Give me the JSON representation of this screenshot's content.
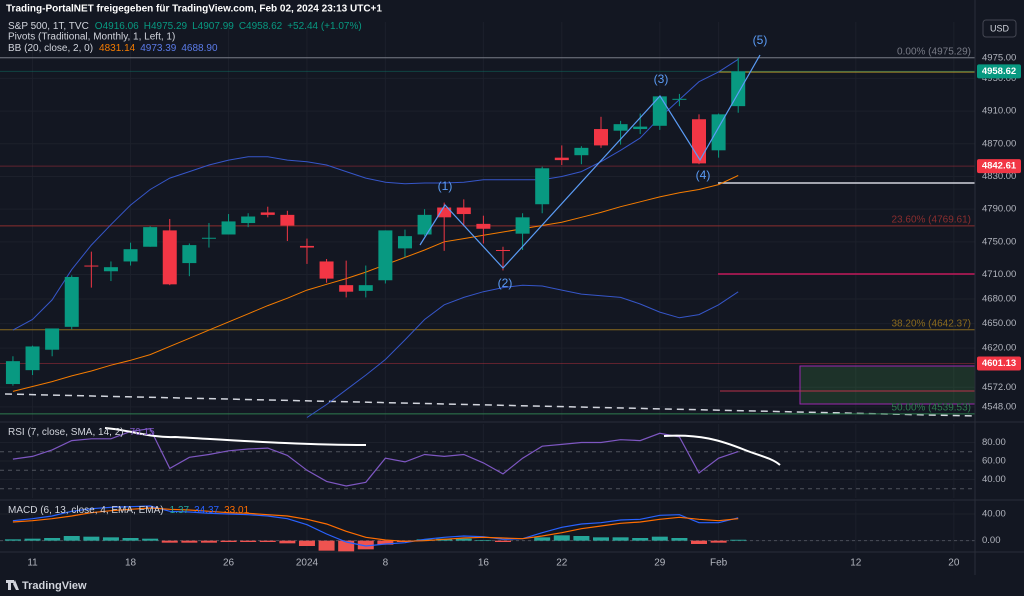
{
  "header": {
    "attribution": "Trading-PortalNET freigegeben für TradingView.com, Feb 02, 2024 23:13 UTC+1",
    "currency": "USD",
    "logo": "TradingView"
  },
  "chart_data": [
    {
      "type": "candlestick",
      "title": "S&P 500, 1T, TVC",
      "ohlc_labels": [
        "O4916.06",
        "H4975.29",
        "L4907.99",
        "C4958.62",
        "+52.44 (+1.07%)"
      ],
      "pivots_title": "Pivots (Traditional, Monthly, 1, Left, 1)",
      "xlim": [
        -0.66,
        49.08
      ],
      "xticks": [
        {
          "value": 1,
          "label": "11"
        },
        {
          "value": 6,
          "label": "18"
        },
        {
          "value": 11,
          "label": "26"
        },
        {
          "value": 15,
          "label": "2024"
        },
        {
          "value": 19,
          "label": "8"
        },
        {
          "value": 24,
          "label": "16"
        },
        {
          "value": 28,
          "label": "22"
        },
        {
          "value": 33,
          "label": "29"
        },
        {
          "value": 36,
          "label": "Feb"
        },
        {
          "value": 43,
          "label": "12"
        },
        {
          "value": 48,
          "label": "20"
        }
      ],
      "ylim": [
        4532,
        5019
      ],
      "yticks": [
        {
          "value": 4975,
          "label": "4975.00"
        },
        {
          "value": 4950,
          "label": "4950.00"
        },
        {
          "value": 4910,
          "label": "4910.00"
        },
        {
          "value": 4870,
          "label": "4870.00"
        },
        {
          "value": 4830,
          "label": "4830.00"
        },
        {
          "value": 4790,
          "label": "4790.00"
        },
        {
          "value": 4750,
          "label": "4750.00"
        },
        {
          "value": 4710,
          "label": "4710.00"
        },
        {
          "value": 4680,
          "label": "4680.00"
        },
        {
          "value": 4650,
          "label": "4650.00"
        },
        {
          "value": 4620,
          "label": "4620.00"
        },
        {
          "value": 4572,
          "label": "4572.00"
        },
        {
          "value": 4548,
          "label": "4548.00"
        }
      ],
      "grid": true,
      "up_color": "#089981",
      "down_color": "#f23645",
      "open": [
        4576,
        4593,
        4618,
        4646,
        4721,
        4714,
        4726,
        4744,
        4764,
        4724,
        4754,
        4759,
        4773,
        4786,
        4783,
        4745,
        4726,
        4697,
        4690,
        4703,
        4742,
        4759,
        4792,
        4792,
        4772,
        4740,
        4760,
        4796,
        4853,
        4856,
        4888,
        4886,
        4888,
        4892,
        4925,
        4900,
        4862,
        4916.06
      ],
      "high": [
        4610,
        4623,
        4644,
        4709,
        4738,
        4726,
        4749,
        4769,
        4778,
        4748,
        4773,
        4784,
        4785,
        4793,
        4788,
        4754,
        4729,
        4727,
        4721,
        4764,
        4765,
        4790,
        4798,
        4802,
        4782,
        4744,
        4785,
        4842,
        4868,
        4867,
        4903,
        4898,
        4907,
        4929,
        4931,
        4906,
        4907,
        4975.29
      ],
      "low": [
        4574,
        4587,
        4610,
        4643,
        4694,
        4702,
        4721,
        4744,
        4697,
        4708,
        4743,
        4759,
        4768,
        4780,
        4751,
        4723,
        4700,
        4682,
        4682,
        4699,
        4731,
        4757,
        4739,
        4769,
        4748,
        4715,
        4740,
        4785,
        4844,
        4845,
        4865,
        4869,
        4882,
        4887,
        4916,
        4845,
        4853,
        4907.99
      ],
      "close": [
        4604,
        4622,
        4644,
        4707,
        4720,
        4719,
        4741,
        4768,
        4698,
        4746,
        4755,
        4775,
        4781,
        4783,
        4770,
        4743,
        4705,
        4689,
        4697,
        4764,
        4757,
        4783,
        4780,
        4784,
        4766,
        4739,
        4780,
        4840,
        4850,
        4865,
        4868,
        4894,
        4891,
        4928,
        4925,
        4846,
        4906,
        4958.62
      ],
      "bb": {
        "title": "BB (20, close, 2, 0)",
        "legend_values": [
          "4831.14",
          "4973.39",
          "4688.90"
        ],
        "bands": [
          {
            "color": "#f57c00",
            "values": [
              4567,
              4573,
              4579,
              4586,
              4592,
              4599,
              4605,
              4612,
              4622,
              4632,
              4642,
              4652,
              4662,
              4672,
              4681,
              4691,
              4698,
              4705,
              4713,
              4722,
              4731,
              4740,
              4750,
              4754,
              4758,
              4762,
              4766,
              4770,
              4774,
              4780,
              4786,
              4793,
              4799,
              4805,
              4810,
              4814,
              4820,
              4831.14
            ]
          },
          {
            "color": "#3656c9",
            "values": [
              4642,
              4655,
              4679,
              4716,
              4746,
              4771,
              4795,
              4814,
              4828,
              4836,
              4844,
              4850,
              4854,
              4854,
              4850,
              4848,
              4844,
              4836,
              4828,
              4823,
              4821,
              4822,
              4822,
              4823,
              4826,
              4826,
              4826,
              4826,
              4830,
              4836,
              4848,
              4862,
              4877,
              4902,
              4924,
              4946,
              4958,
              4973.39
            ]
          },
          {
            "color": "#3656c9",
            "values": [
              null,
              null,
              null,
              null,
              null,
              null,
              null,
              null,
              null,
              null,
              null,
              null,
              null,
              null,
              null,
              4535,
              4551,
              4569,
              4587,
              4606,
              4630,
              4655,
              4673,
              4682,
              4689,
              4694,
              4697,
              4696,
              4691,
              4686,
              4684,
              4682,
              4674,
              4664,
              4657,
              4661,
              4673,
              4688.9
            ]
          }
        ]
      },
      "fib": {
        "prices": [
          4975.29,
          4769.61,
          4642.37,
          4539.53
        ],
        "labels": [
          "0.00% (4975.29)",
          "23.60% (4769.61)",
          "38.20% (4642.37)",
          "50.00% (4539.53)"
        ],
        "colors": [
          "#787b86",
          "#8b2e2e",
          "#8a6a1e",
          "#2e7d4f"
        ]
      },
      "price_labels": {
        "values": [
          4958.62,
          4842.61,
          4601.13
        ],
        "colors": [
          "#089981",
          "#f23645",
          "#f23645"
        ]
      },
      "annotations": [
        "(1)",
        "(2)",
        "(3)",
        "(4)",
        "(5)"
      ]
    },
    {
      "type": "line",
      "title": "RSI (7, close, SMA, 14, 2)",
      "ylim": [
        20,
        100
      ],
      "yticks": [
        {
          "value": 80,
          "label": "80.00"
        },
        {
          "value": 60,
          "label": "60.00"
        },
        {
          "value": 40,
          "label": "40.00"
        }
      ],
      "levels": [
        70,
        50,
        30
      ],
      "series": [
        {
          "color": "#7e57c2",
          "values": [
            62,
            65,
            72,
            82,
            84,
            84,
            92,
            95,
            52,
            64,
            67,
            71,
            73,
            74,
            66,
            50,
            38,
            33,
            37,
            63,
            59,
            67,
            65,
            67,
            58,
            46,
            63,
            76,
            78,
            80,
            80,
            83,
            82,
            90,
            86,
            47,
            63,
            70.15
          ]
        }
      ]
    },
    {
      "type": "macd",
      "title": "MACD (6, 13, close, 4, EMA, EMA)",
      "ylim": [
        -14,
        58
      ],
      "yticks": [
        {
          "value": 40,
          "label": "40.00"
        },
        {
          "value": 0,
          "label": "0.00"
        }
      ],
      "histogram": {
        "colors": [
          "#26a69a",
          "#ef5350"
        ],
        "values": [
          2,
          3,
          4,
          7,
          6,
          5,
          4,
          3,
          -3,
          -3,
          -3,
          -2,
          -2,
          -2,
          -4,
          -8,
          -15,
          -16,
          -13,
          -6,
          -2,
          2,
          3,
          3,
          1,
          -2,
          0,
          5,
          8,
          7,
          5,
          5,
          4,
          6,
          4,
          -5,
          -3,
          1.37
        ]
      },
      "series": [
        {
          "color": "#2962ff",
          "values": [
            30,
            33,
            37,
            44,
            48,
            50,
            51,
            52,
            44,
            43,
            41,
            40,
            39,
            37,
            33,
            24,
            10,
            -2,
            -8,
            -5,
            -3,
            2,
            5,
            7,
            6,
            2,
            3,
            12,
            20,
            25,
            27,
            31,
            32,
            38,
            39,
            27,
            27,
            34.37
          ]
        },
        {
          "color": "#ff6d00",
          "values": [
            28,
            30,
            33,
            37,
            42,
            45,
            47,
            49,
            47,
            46,
            44,
            42,
            41,
            39,
            37,
            32,
            25,
            14,
            5,
            1,
            -1,
            0,
            2,
            4,
            5,
            4,
            3,
            7,
            12,
            18,
            22,
            26,
            28,
            32,
            35,
            32,
            30,
            33.01
          ]
        }
      ]
    }
  ]
}
